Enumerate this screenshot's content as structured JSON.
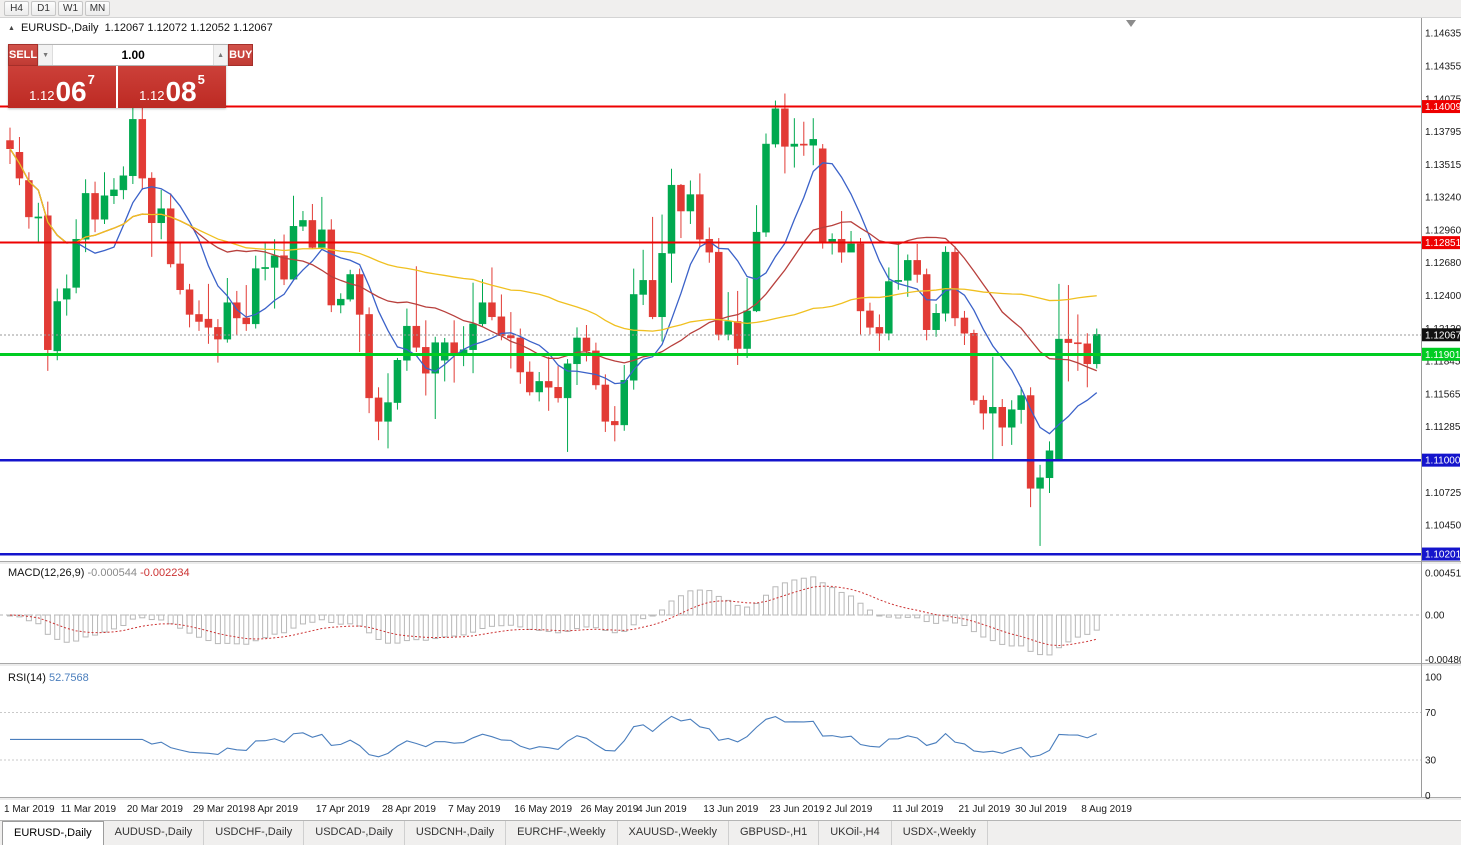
{
  "toolbar": {
    "timeframes": [
      "H4",
      "D1",
      "W1",
      "MN"
    ]
  },
  "chart": {
    "symbol_title": "EURUSD-,Daily",
    "ohlc_text": "1.12067 1.12072 1.12052 1.12067"
  },
  "one_click": {
    "sell_label": "SELL",
    "buy_label": "BUY",
    "volume": "1.00",
    "sell_price": {
      "prefix": "1.12",
      "big": "06",
      "sup": "7"
    },
    "buy_price": {
      "prefix": "1.12",
      "big": "08",
      "sup": "5"
    }
  },
  "icons": {
    "collapse": "▲",
    "volume_up": "▲",
    "volume_down": "▼"
  },
  "tabs": [
    {
      "label": "EURUSD-,Daily",
      "active": true
    },
    {
      "label": "AUDUSD-,Daily"
    },
    {
      "label": "USDCHF-,Daily"
    },
    {
      "label": "USDCAD-,Daily"
    },
    {
      "label": "USDCNH-,Daily"
    },
    {
      "label": "EURCHF-,Weekly"
    },
    {
      "label": "XAUUSD-,Weekly"
    },
    {
      "label": "GBPUSD-,H1"
    },
    {
      "label": "UKOil-,H4"
    },
    {
      "label": "USDX-,Weekly"
    }
  ],
  "colors": {
    "bull": "#00a94f",
    "bear": "#e23b35",
    "ma_fast": "#3b62c9",
    "ma_mid": "#b8403d",
    "ma_slow": "#f0c020",
    "macd_hist": "#b8b8b8",
    "macd_signal": "#cc3333",
    "rsi": "#4a7ebd",
    "axis_text": "#1a1a1a",
    "current_tag": "#111111"
  },
  "chart_data": {
    "type": "candlestick",
    "title": "EURUSD-,Daily",
    "candles": [
      [
        1.1372,
        1.1383,
        1.1352,
        1.1365
      ],
      [
        1.1362,
        1.1375,
        1.1334,
        1.134
      ],
      [
        1.1338,
        1.1345,
        1.1297,
        1.1307
      ],
      [
        1.1306,
        1.1319,
        1.1285,
        1.1307
      ],
      [
        1.1308,
        1.132,
        1.1176,
        1.1194
      ],
      [
        1.1193,
        1.1246,
        1.1185,
        1.1235
      ],
      [
        1.1237,
        1.1258,
        1.1223,
        1.1246
      ],
      [
        1.1247,
        1.1305,
        1.1242,
        1.1288
      ],
      [
        1.1288,
        1.1339,
        1.1277,
        1.1327
      ],
      [
        1.1327,
        1.1337,
        1.1294,
        1.1305
      ],
      [
        1.1305,
        1.1345,
        1.1301,
        1.1325
      ],
      [
        1.1325,
        1.134,
        1.1318,
        1.133
      ],
      [
        1.133,
        1.135,
        1.1322,
        1.1342
      ],
      [
        1.1342,
        1.14,
        1.1335,
        1.139
      ],
      [
        1.139,
        1.1402,
        1.133,
        1.134
      ],
      [
        1.134,
        1.1345,
        1.1273,
        1.1302
      ],
      [
        1.1302,
        1.133,
        1.1288,
        1.1314
      ],
      [
        1.1314,
        1.1327,
        1.1264,
        1.1267
      ],
      [
        1.1267,
        1.1286,
        1.1241,
        1.1245
      ],
      [
        1.1245,
        1.125,
        1.1213,
        1.1224
      ],
      [
        1.1224,
        1.1236,
        1.121,
        1.1218
      ],
      [
        1.122,
        1.125,
        1.1199,
        1.1213
      ],
      [
        1.1213,
        1.122,
        1.1183,
        1.1203
      ],
      [
        1.1203,
        1.1255,
        1.12,
        1.1234
      ],
      [
        1.1234,
        1.1244,
        1.1206,
        1.1221
      ],
      [
        1.1221,
        1.1249,
        1.121,
        1.1216
      ],
      [
        1.1216,
        1.1274,
        1.1212,
        1.1263
      ],
      [
        1.1263,
        1.1285,
        1.1253,
        1.1264
      ],
      [
        1.1264,
        1.1288,
        1.1229,
        1.1274
      ],
      [
        1.1274,
        1.1292,
        1.1249,
        1.1254
      ],
      [
        1.1254,
        1.1325,
        1.1253,
        1.1299
      ],
      [
        1.1299,
        1.1312,
        1.1295,
        1.1304
      ],
      [
        1.1304,
        1.1318,
        1.128,
        1.1281
      ],
      [
        1.1281,
        1.1324,
        1.128,
        1.1296
      ],
      [
        1.1296,
        1.1305,
        1.1226,
        1.1232
      ],
      [
        1.1232,
        1.1242,
        1.1225,
        1.1237
      ],
      [
        1.1237,
        1.1262,
        1.1235,
        1.1258
      ],
      [
        1.1258,
        1.1263,
        1.1192,
        1.1224
      ],
      [
        1.1224,
        1.123,
        1.114,
        1.1153
      ],
      [
        1.1153,
        1.1162,
        1.1117,
        1.1133
      ],
      [
        1.1133,
        1.1174,
        1.111,
        1.1149
      ],
      [
        1.1149,
        1.1187,
        1.1143,
        1.1185
      ],
      [
        1.1185,
        1.1229,
        1.1176,
        1.1214
      ],
      [
        1.1214,
        1.1265,
        1.1192,
        1.1196
      ],
      [
        1.1196,
        1.1219,
        1.1155,
        1.1174
      ],
      [
        1.1174,
        1.1205,
        1.1135,
        1.12
      ],
      [
        1.1185,
        1.1204,
        1.1167,
        1.12
      ],
      [
        1.12,
        1.1219,
        1.1166,
        1.1191
      ],
      [
        1.1191,
        1.1214,
        1.118,
        1.1194
      ],
      [
        1.1194,
        1.1251,
        1.1174,
        1.1216
      ],
      [
        1.1216,
        1.1254,
        1.1214,
        1.1234
      ],
      [
        1.1234,
        1.1264,
        1.1219,
        1.1222
      ],
      [
        1.1222,
        1.1241,
        1.1202,
        1.1206
      ],
      [
        1.1206,
        1.1226,
        1.1178,
        1.1204
      ],
      [
        1.1204,
        1.1212,
        1.1165,
        1.1175
      ],
      [
        1.1175,
        1.1184,
        1.1155,
        1.1158
      ],
      [
        1.1158,
        1.1175,
        1.115,
        1.1167
      ],
      [
        1.1167,
        1.1188,
        1.1142,
        1.1162
      ],
      [
        1.1162,
        1.118,
        1.1149,
        1.1153
      ],
      [
        1.1153,
        1.1186,
        1.1107,
        1.1182
      ],
      [
        1.1182,
        1.1213,
        1.1164,
        1.1204
      ],
      [
        1.1204,
        1.1215,
        1.1184,
        1.1193
      ],
      [
        1.1193,
        1.12,
        1.116,
        1.1164
      ],
      [
        1.1164,
        1.1173,
        1.1124,
        1.1133
      ],
      [
        1.1133,
        1.1146,
        1.1116,
        1.113
      ],
      [
        1.113,
        1.1181,
        1.1125,
        1.1168
      ],
      [
        1.1168,
        1.1263,
        1.116,
        1.1241
      ],
      [
        1.1241,
        1.1279,
        1.1232,
        1.1253
      ],
      [
        1.1253,
        1.1307,
        1.122,
        1.1222
      ],
      [
        1.1222,
        1.1309,
        1.1201,
        1.1276
      ],
      [
        1.1276,
        1.1348,
        1.1251,
        1.1334
      ],
      [
        1.1334,
        1.1335,
        1.1289,
        1.1312
      ],
      [
        1.1312,
        1.1338,
        1.1301,
        1.1326
      ],
      [
        1.1326,
        1.1344,
        1.1281,
        1.1288
      ],
      [
        1.1288,
        1.1298,
        1.1268,
        1.1277
      ],
      [
        1.1277,
        1.1289,
        1.1202,
        1.1207
      ],
      [
        1.1207,
        1.1243,
        1.1202,
        1.1218
      ],
      [
        1.1218,
        1.1244,
        1.1181,
        1.1195
      ],
      [
        1.1195,
        1.1255,
        1.1187,
        1.1227
      ],
      [
        1.1227,
        1.1317,
        1.1226,
        1.1294
      ],
      [
        1.1294,
        1.1378,
        1.129,
        1.1369
      ],
      [
        1.1369,
        1.1406,
        1.1366,
        1.1399
      ],
      [
        1.1399,
        1.1412,
        1.1344,
        1.1367
      ],
      [
        1.1367,
        1.1391,
        1.1349,
        1.1369
      ],
      [
        1.1369,
        1.1388,
        1.1359,
        1.1368
      ],
      [
        1.1368,
        1.1391,
        1.1351,
        1.1373
      ],
      [
        1.1365,
        1.1369,
        1.128,
        1.1285
      ],
      [
        1.1285,
        1.1293,
        1.1275,
        1.1288
      ],
      [
        1.1288,
        1.1312,
        1.1268,
        1.1277
      ],
      [
        1.1277,
        1.1295,
        1.1277,
        1.1284
      ],
      [
        1.1284,
        1.1289,
        1.1207,
        1.1227
      ],
      [
        1.1227,
        1.1234,
        1.1207,
        1.1213
      ],
      [
        1.1213,
        1.1224,
        1.1193,
        1.1208
      ],
      [
        1.1208,
        1.1264,
        1.1202,
        1.1252
      ],
      [
        1.1252,
        1.1285,
        1.1245,
        1.1253
      ],
      [
        1.1253,
        1.1275,
        1.1239,
        1.127
      ],
      [
        1.127,
        1.1284,
        1.1251,
        1.1258
      ],
      [
        1.1258,
        1.1263,
        1.1202,
        1.1211
      ],
      [
        1.1211,
        1.1233,
        1.1205,
        1.1225
      ],
      [
        1.1225,
        1.1282,
        1.1218,
        1.1277
      ],
      [
        1.1277,
        1.1282,
        1.1214,
        1.1221
      ],
      [
        1.1221,
        1.1227,
        1.1198,
        1.1208
      ],
      [
        1.1208,
        1.1211,
        1.1147,
        1.1151
      ],
      [
        1.1151,
        1.1155,
        1.1126,
        1.114
      ],
      [
        1.114,
        1.1188,
        1.1101,
        1.1145
      ],
      [
        1.1145,
        1.1152,
        1.1112,
        1.1128
      ],
      [
        1.1128,
        1.1151,
        1.1113,
        1.1143
      ],
      [
        1.1143,
        1.1162,
        1.1131,
        1.1155
      ],
      [
        1.1155,
        1.1162,
        1.106,
        1.1076
      ],
      [
        1.1076,
        1.1096,
        1.1027,
        1.1085
      ],
      [
        1.1085,
        1.1116,
        1.1072,
        1.1108
      ],
      [
        1.11,
        1.125,
        1.11,
        1.1203
      ],
      [
        1.1203,
        1.1249,
        1.1167,
        1.12
      ],
      [
        1.12,
        1.1224,
        1.1176,
        1.1199
      ],
      [
        1.1199,
        1.1208,
        1.1162,
        1.1182
      ],
      [
        1.1182,
        1.1212,
        1.1178,
        1.1207
      ]
    ],
    "date_ticks": [
      {
        "label": "1 Mar 2019",
        "index": 0
      },
      {
        "label": "11 Mar 2019",
        "index": 6
      },
      {
        "label": "20 Mar 2019",
        "index": 13
      },
      {
        "label": "29 Mar 2019",
        "index": 20
      },
      {
        "label": "8 Apr 2019",
        "index": 26
      },
      {
        "label": "17 Apr 2019",
        "index": 33
      },
      {
        "label": "28 Apr 2019",
        "index": 40
      },
      {
        "label": "7 May 2019",
        "index": 47
      },
      {
        "label": "16 May 2019",
        "index": 54
      },
      {
        "label": "26 May 2019",
        "index": 61
      },
      {
        "label": "4 Jun 2019",
        "index": 67
      },
      {
        "label": "13 Jun 2019",
        "index": 74
      },
      {
        "label": "23 Jun 2019",
        "index": 81
      },
      {
        "label": "2 Jul 2019",
        "index": 87
      },
      {
        "label": "11 Jul 2019",
        "index": 94
      },
      {
        "label": "21 Jul 2019",
        "index": 101
      },
      {
        "label": "30 Jul 2019",
        "index": 107
      },
      {
        "label": "8 Aug 2019",
        "index": 114
      }
    ],
    "price_axis_labels": [
      "1.14635",
      "1.14355",
      "1.14075",
      "1.13795",
      "1.13515",
      "1.13240",
      "1.12960",
      "1.12680",
      "1.12400",
      "1.12120",
      "1.11845",
      "1.11565",
      "1.11285",
      "1.10725",
      "1.10450"
    ],
    "levels": [
      {
        "price": 1.14009,
        "label": "1.14009",
        "color": "#ee0000",
        "width": 2
      },
      {
        "price": 1.12851,
        "label": "1.12851",
        "color": "#ee0000",
        "width": 2
      },
      {
        "price": 1.11901,
        "label": "1.11901",
        "color": "#00cc22",
        "width": 3
      },
      {
        "price": 1.11,
        "label": "1.11000",
        "color": "#1414cc",
        "width": 2.5
      },
      {
        "price": 1.10201,
        "label": "1.10201",
        "color": "#1414cc",
        "width": 2.5
      }
    ],
    "current_price": {
      "value": 1.12067,
      "label": "1.12067"
    },
    "moving_averages": [
      {
        "period": 8,
        "color_key": "ma_fast"
      },
      {
        "period": 20,
        "color_key": "ma_mid"
      },
      {
        "period": 50,
        "color_key": "ma_slow"
      }
    ],
    "indicators": {
      "macd": {
        "name": "MACD(12,26,9)",
        "fast": 12,
        "slow": 26,
        "signal": 9,
        "value": "-0.000544",
        "signal_value": "-0.002234",
        "axis_labels": [
          "0.004517",
          "0.00",
          "-0.004800"
        ]
      },
      "rsi": {
        "name": "RSI(14)",
        "period": 14,
        "value": "52.7568",
        "axis_labels": [
          "100",
          "70",
          "30",
          "0"
        ],
        "guide_levels": [
          70,
          30
        ]
      }
    }
  }
}
